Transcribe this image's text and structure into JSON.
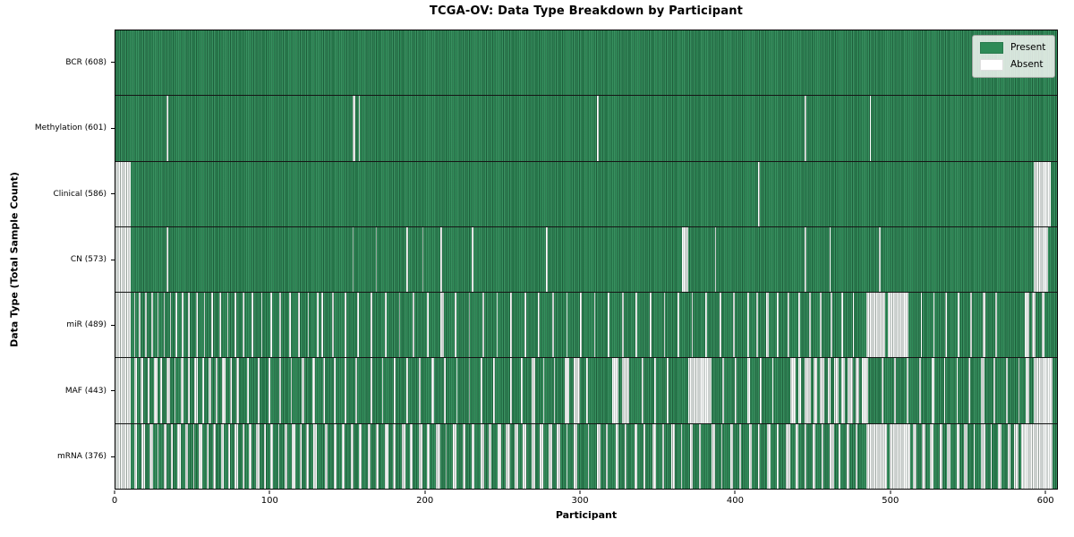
{
  "title": "TCGA-OV: Data Type Breakdown by Participant",
  "legend": {
    "items": [
      {
        "label": "Present",
        "color": "#2e8b57"
      },
      {
        "label": "Absent",
        "color": "#ffffff"
      }
    ]
  },
  "chart_data": {
    "type": "heatmap",
    "title": "TCGA-OV: Data Type Breakdown by Participant",
    "xlabel": "Participant",
    "ylabel": "Data Type (Total Sample Count)",
    "x_ticks": [
      0,
      100,
      200,
      300,
      400,
      500,
      600
    ],
    "x_range": [
      0,
      608
    ],
    "total_participants": 608,
    "grid": false,
    "legend_position": "upper right",
    "legend_entries": [
      "Present",
      "Absent"
    ],
    "colors": {
      "present": "#2e8b57",
      "absent": "#ffffff"
    },
    "rows": [
      {
        "label": "BCR (608)",
        "data_type": "BCR",
        "present_count": 608,
        "absent_count": 0,
        "absent_runs": []
      },
      {
        "label": "Methylation (601)",
        "data_type": "Methylation",
        "present_count": 601,
        "absent_count": 7,
        "absent_runs": [
          [
            33,
            1
          ],
          [
            153,
            2
          ],
          [
            157,
            1
          ],
          [
            311,
            1
          ],
          [
            445,
            1
          ],
          [
            487,
            1
          ]
        ]
      },
      {
        "label": "Clinical (586)",
        "data_type": "Clinical",
        "present_count": 586,
        "absent_count": 22,
        "absent_runs": [
          [
            0,
            10
          ],
          [
            415,
            1
          ],
          [
            593,
            11
          ]
        ]
      },
      {
        "label": "CN (573)",
        "data_type": "CN",
        "present_count": 573,
        "absent_count": 35,
        "absent_runs": [
          [
            0,
            10
          ],
          [
            33,
            1
          ],
          [
            153,
            1
          ],
          [
            168,
            1
          ],
          [
            188,
            1
          ],
          [
            198,
            1
          ],
          [
            210,
            1
          ],
          [
            230,
            1
          ],
          [
            278,
            1
          ],
          [
            366,
            4
          ],
          [
            387,
            1
          ],
          [
            445,
            1
          ],
          [
            461,
            1
          ],
          [
            493,
            1
          ],
          [
            593,
            9
          ]
        ]
      },
      {
        "label": "miR (489)",
        "data_type": "miR",
        "present_count": 489,
        "absent_count": 119,
        "absent_runs": [
          [
            0,
            10
          ],
          [
            12,
            1
          ],
          [
            15,
            1
          ],
          [
            19,
            1
          ],
          [
            23,
            1
          ],
          [
            27,
            1
          ],
          [
            31,
            1
          ],
          [
            35,
            1
          ],
          [
            39,
            1
          ],
          [
            43,
            1
          ],
          [
            47,
            1
          ],
          [
            52,
            1
          ],
          [
            57,
            1
          ],
          [
            62,
            1
          ],
          [
            67,
            1
          ],
          [
            72,
            1
          ],
          [
            77,
            1
          ],
          [
            82,
            1
          ],
          [
            88,
            1
          ],
          [
            94,
            1
          ],
          [
            100,
            1
          ],
          [
            106,
            1
          ],
          [
            112,
            1
          ],
          [
            118,
            1
          ],
          [
            124,
            1
          ],
          [
            130,
            1
          ],
          [
            133,
            1
          ],
          [
            140,
            1
          ],
          [
            148,
            1
          ],
          [
            156,
            1
          ],
          [
            165,
            1
          ],
          [
            174,
            1
          ],
          [
            183,
            1
          ],
          [
            192,
            1
          ],
          [
            201,
            1
          ],
          [
            210,
            2
          ],
          [
            219,
            1
          ],
          [
            228,
            1
          ],
          [
            237,
            1
          ],
          [
            246,
            1
          ],
          [
            255,
            1
          ],
          [
            264,
            1
          ],
          [
            273,
            1
          ],
          [
            282,
            1
          ],
          [
            291,
            1
          ],
          [
            300,
            1
          ],
          [
            309,
            1
          ],
          [
            318,
            1
          ],
          [
            327,
            1
          ],
          [
            336,
            1
          ],
          [
            345,
            1
          ],
          [
            354,
            1
          ],
          [
            363,
            1
          ],
          [
            372,
            1
          ],
          [
            381,
            1
          ],
          [
            390,
            1
          ],
          [
            399,
            1
          ],
          [
            408,
            1
          ],
          [
            414,
            1
          ],
          [
            420,
            2
          ],
          [
            427,
            1
          ],
          [
            434,
            1
          ],
          [
            441,
            1
          ],
          [
            448,
            1
          ],
          [
            455,
            1
          ],
          [
            462,
            1
          ],
          [
            469,
            1
          ],
          [
            476,
            1
          ],
          [
            485,
            12
          ],
          [
            499,
            13
          ],
          [
            520,
            1
          ],
          [
            528,
            1
          ],
          [
            536,
            1
          ],
          [
            544,
            1
          ],
          [
            552,
            1
          ],
          [
            560,
            2
          ],
          [
            568,
            1
          ],
          [
            587,
            3
          ],
          [
            592,
            2
          ],
          [
            598,
            2
          ]
        ]
      },
      {
        "label": "MAF (443)",
        "data_type": "MAF",
        "present_count": 443,
        "absent_count": 165,
        "absent_runs": [
          [
            0,
            10
          ],
          [
            12,
            2
          ],
          [
            16,
            2
          ],
          [
            21,
            1
          ],
          [
            25,
            2
          ],
          [
            29,
            1
          ],
          [
            33,
            2
          ],
          [
            38,
            1
          ],
          [
            42,
            2
          ],
          [
            47,
            1
          ],
          [
            51,
            2
          ],
          [
            56,
            1
          ],
          [
            60,
            2
          ],
          [
            65,
            1
          ],
          [
            69,
            2
          ],
          [
            74,
            1
          ],
          [
            78,
            2
          ],
          [
            85,
            1
          ],
          [
            92,
            1
          ],
          [
            99,
            1
          ],
          [
            106,
            1
          ],
          [
            113,
            1
          ],
          [
            120,
            2
          ],
          [
            127,
            2
          ],
          [
            134,
            1
          ],
          [
            141,
            1
          ],
          [
            148,
            1
          ],
          [
            155,
            1
          ],
          [
            165,
            1
          ],
          [
            172,
            1
          ],
          [
            180,
            1
          ],
          [
            188,
            1
          ],
          [
            196,
            1
          ],
          [
            204,
            2
          ],
          [
            212,
            1
          ],
          [
            220,
            1
          ],
          [
            228,
            1
          ],
          [
            236,
            1
          ],
          [
            244,
            1
          ],
          [
            255,
            1
          ],
          [
            262,
            1
          ],
          [
            269,
            2
          ],
          [
            276,
            1
          ],
          [
            283,
            1
          ],
          [
            290,
            3
          ],
          [
            296,
            4
          ],
          [
            304,
            1
          ],
          [
            321,
            4
          ],
          [
            327,
            5
          ],
          [
            340,
            1
          ],
          [
            348,
            1
          ],
          [
            356,
            1
          ],
          [
            370,
            15
          ],
          [
            392,
            1
          ],
          [
            400,
            1
          ],
          [
            408,
            2
          ],
          [
            416,
            1
          ],
          [
            424,
            1
          ],
          [
            436,
            3
          ],
          [
            441,
            2
          ],
          [
            445,
            4
          ],
          [
            451,
            2
          ],
          [
            455,
            3
          ],
          [
            460,
            2
          ],
          [
            464,
            3
          ],
          [
            469,
            2
          ],
          [
            473,
            3
          ],
          [
            478,
            2
          ],
          [
            482,
            4
          ],
          [
            495,
            1
          ],
          [
            503,
            1
          ],
          [
            511,
            1
          ],
          [
            519,
            1
          ],
          [
            527,
            2
          ],
          [
            535,
            1
          ],
          [
            543,
            1
          ],
          [
            551,
            1
          ],
          [
            559,
            2
          ],
          [
            567,
            1
          ],
          [
            575,
            1
          ],
          [
            583,
            1
          ],
          [
            588,
            2
          ],
          [
            593,
            12
          ]
        ]
      },
      {
        "label": "mRNA (376)",
        "data_type": "mRNA",
        "present_count": 376,
        "absent_count": 232,
        "absent_runs": [
          [
            0,
            10
          ],
          [
            12,
            2
          ],
          [
            17,
            2
          ],
          [
            22,
            2
          ],
          [
            27,
            1
          ],
          [
            31,
            2
          ],
          [
            36,
            1
          ],
          [
            40,
            2
          ],
          [
            45,
            2
          ],
          [
            50,
            1
          ],
          [
            54,
            2
          ],
          [
            59,
            1
          ],
          [
            63,
            2
          ],
          [
            68,
            2
          ],
          [
            73,
            1
          ],
          [
            77,
            2
          ],
          [
            82,
            1
          ],
          [
            86,
            2
          ],
          [
            91,
            2
          ],
          [
            96,
            1
          ],
          [
            100,
            2
          ],
          [
            105,
            1
          ],
          [
            109,
            2
          ],
          [
            114,
            2
          ],
          [
            119,
            1
          ],
          [
            123,
            2
          ],
          [
            128,
            2
          ],
          [
            135,
            2
          ],
          [
            141,
            2
          ],
          [
            146,
            2
          ],
          [
            152,
            2
          ],
          [
            157,
            2
          ],
          [
            163,
            2
          ],
          [
            168,
            2
          ],
          [
            174,
            2
          ],
          [
            179,
            2
          ],
          [
            185,
            2
          ],
          [
            190,
            2
          ],
          [
            196,
            2
          ],
          [
            201,
            2
          ],
          [
            207,
            3
          ],
          [
            213,
            1
          ],
          [
            218,
            2
          ],
          [
            224,
            2
          ],
          [
            230,
            2
          ],
          [
            236,
            2
          ],
          [
            241,
            2
          ],
          [
            247,
            2
          ],
          [
            252,
            3
          ],
          [
            258,
            2
          ],
          [
            263,
            2
          ],
          [
            269,
            2
          ],
          [
            274,
            2
          ],
          [
            280,
            2
          ],
          [
            285,
            2
          ],
          [
            291,
            1
          ],
          [
            296,
            2
          ],
          [
            305,
            1
          ],
          [
            311,
            2
          ],
          [
            317,
            1
          ],
          [
            323,
            2
          ],
          [
            329,
            1
          ],
          [
            335,
            2
          ],
          [
            341,
            1
          ],
          [
            347,
            2
          ],
          [
            353,
            1
          ],
          [
            359,
            2
          ],
          [
            365,
            1
          ],
          [
            371,
            2
          ],
          [
            377,
            1
          ],
          [
            385,
            2
          ],
          [
            391,
            1
          ],
          [
            397,
            2
          ],
          [
            403,
            1
          ],
          [
            409,
            2
          ],
          [
            415,
            1
          ],
          [
            421,
            2
          ],
          [
            427,
            1
          ],
          [
            433,
            3
          ],
          [
            439,
            2
          ],
          [
            445,
            1
          ],
          [
            450,
            2
          ],
          [
            456,
            1
          ],
          [
            461,
            3
          ],
          [
            467,
            1
          ],
          [
            472,
            2
          ],
          [
            478,
            1
          ],
          [
            485,
            13
          ],
          [
            500,
            13
          ],
          [
            515,
            2
          ],
          [
            521,
            2
          ],
          [
            526,
            2
          ],
          [
            532,
            2
          ],
          [
            537,
            2
          ],
          [
            543,
            2
          ],
          [
            548,
            2
          ],
          [
            554,
            1
          ],
          [
            559,
            3
          ],
          [
            565,
            1
          ],
          [
            570,
            2
          ],
          [
            576,
            2
          ],
          [
            580,
            3
          ],
          [
            585,
            20
          ]
        ]
      }
    ]
  }
}
